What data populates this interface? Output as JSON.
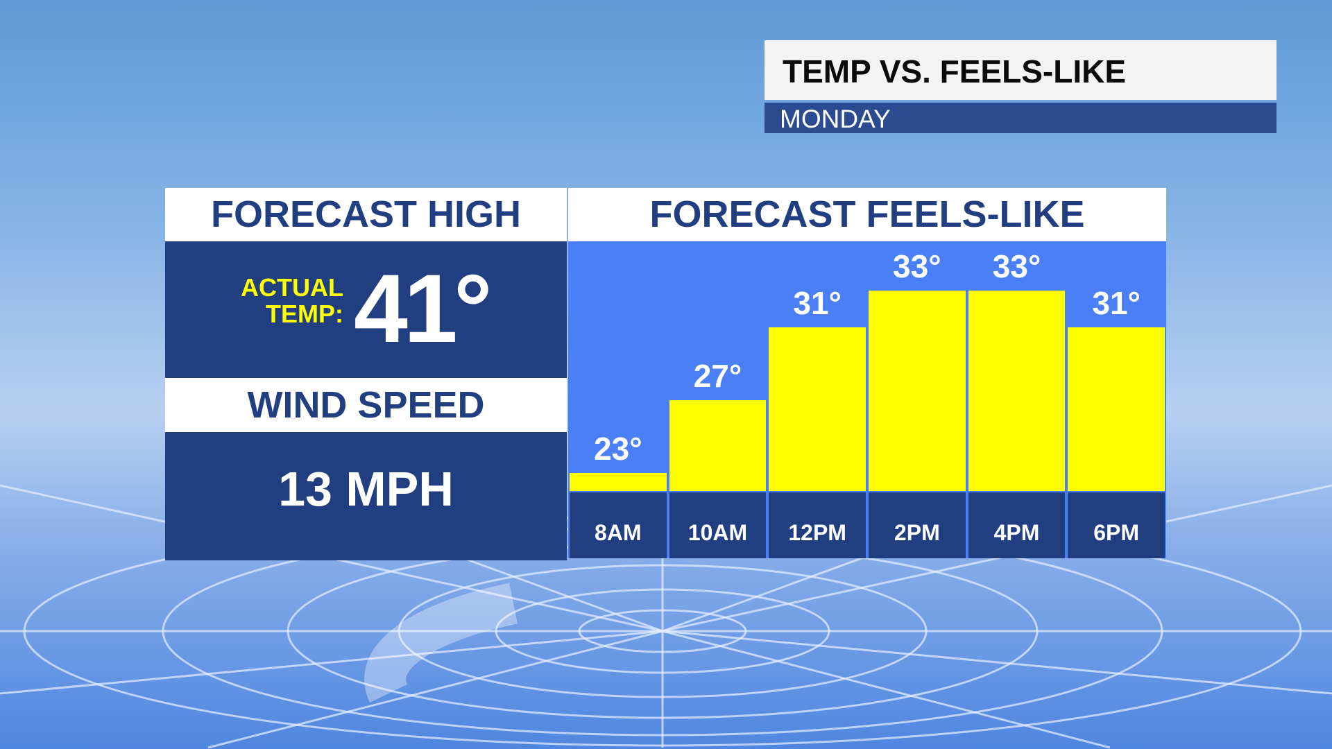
{
  "header": {
    "title": "TEMP VS. FEELS-LIKE",
    "subtitle": "MONDAY"
  },
  "left_panel": {
    "high_title": "FORECAST HIGH",
    "actual_label_line1": "ACTUAL",
    "actual_label_line2": "TEMP:",
    "actual_value": "41°",
    "wind_title": "WIND SPEED",
    "wind_value": "13 MPH"
  },
  "colors": {
    "navy": "#213e80",
    "bar": "#ffff00",
    "plot_bg": "#4a7ff5",
    "label_yellow": "#ffff00"
  },
  "chart_data": {
    "type": "bar",
    "title": "FORECAST FEELS-LIKE",
    "categories": [
      "8AM",
      "10AM",
      "12PM",
      "2PM",
      "4PM",
      "6PM"
    ],
    "values": [
      23,
      27,
      31,
      33,
      33,
      31
    ],
    "value_labels": [
      "23°",
      "27°",
      "31°",
      "33°",
      "33°",
      "31°"
    ],
    "unit": "°F",
    "ylim": [
      22,
      35.7
    ],
    "grid": false
  }
}
